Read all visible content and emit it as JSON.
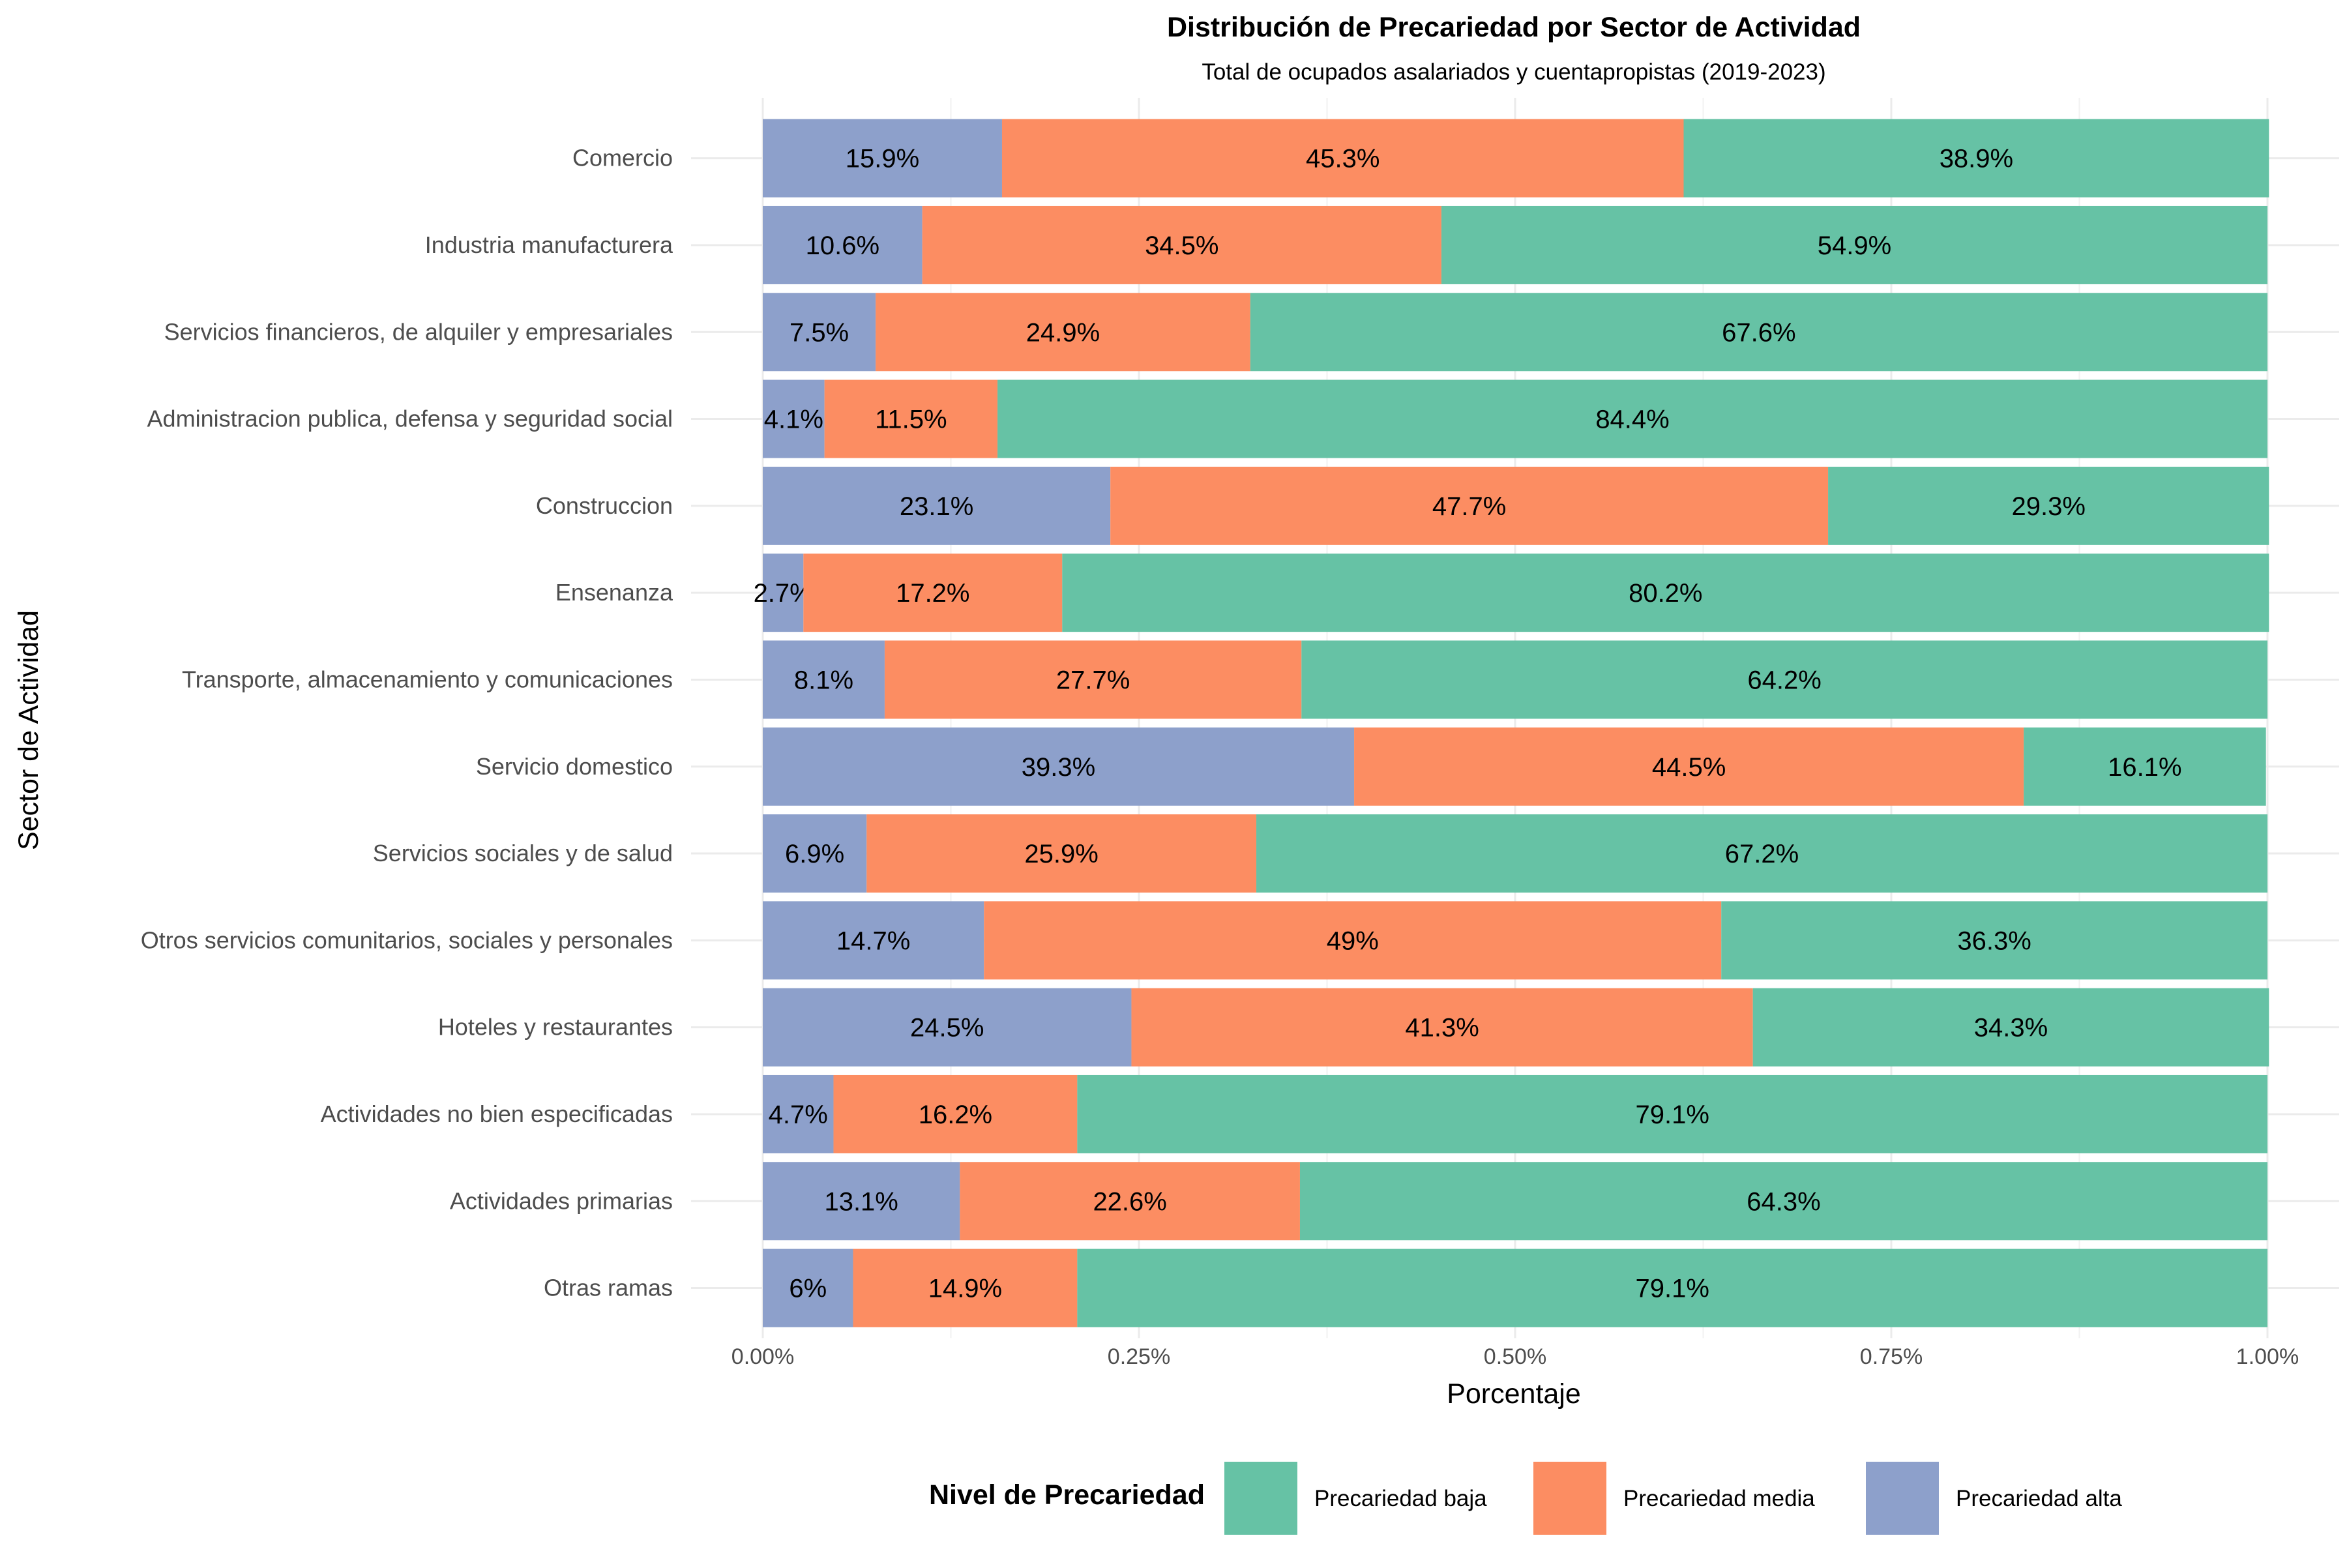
{
  "chart_data": {
    "type": "bar",
    "orientation": "horizontal",
    "stacked": true,
    "title": "Distribución de Precariedad por Sector de Actividad",
    "subtitle": "Total de ocupados asalariados y cuentapropistas (2019-2023)",
    "xlabel": "Porcentaje",
    "ylabel": "Sector de Actividad",
    "xlim": [
      0,
      1
    ],
    "x_ticks": [
      "0.00%",
      "0.25%",
      "0.50%",
      "0.75%",
      "1.00%"
    ],
    "grid": true,
    "legend_title": "Nivel de Precariedad",
    "legend_position": "bottom",
    "categories": [
      "Comercio",
      "Industria manufacturera",
      "Servicios financieros, de alquiler y empresariales",
      "Administracion publica, defensa y seguridad social",
      "Construccion",
      "Ensenanza",
      "Transporte, almacenamiento y comunicaciones",
      "Servicio domestico",
      "Servicios sociales y de salud",
      "Otros servicios comunitarios, sociales y personales",
      "Hoteles y restaurantes",
      "Actividades no bien especificadas",
      "Actividades primarias",
      "Otras ramas"
    ],
    "series": [
      {
        "name": "Precariedad alta",
        "color": "#8DA0CB",
        "values": [
          0.159,
          0.106,
          0.075,
          0.041,
          0.231,
          0.027,
          0.081,
          0.393,
          0.069,
          0.147,
          0.245,
          0.047,
          0.131,
          0.06
        ],
        "labels": [
          "15.9%",
          "10.6%",
          "7.5%",
          "4.1%",
          "23.1%",
          "2.7%",
          "8.1%",
          "39.3%",
          "6.9%",
          "14.7%",
          "24.5%",
          "4.7%",
          "13.1%",
          "6%"
        ]
      },
      {
        "name": "Precariedad media",
        "color": "#FC8D62",
        "values": [
          0.453,
          0.345,
          0.249,
          0.115,
          0.477,
          0.172,
          0.277,
          0.445,
          0.259,
          0.49,
          0.413,
          0.162,
          0.226,
          0.149
        ],
        "labels": [
          "45.3%",
          "34.5%",
          "24.9%",
          "11.5%",
          "47.7%",
          "17.2%",
          "27.7%",
          "44.5%",
          "25.9%",
          "49%",
          "41.3%",
          "16.2%",
          "22.6%",
          "14.9%"
        ]
      },
      {
        "name": "Precariedad baja",
        "color": "#66C2A5",
        "values": [
          0.389,
          0.549,
          0.676,
          0.844,
          0.293,
          0.802,
          0.642,
          0.161,
          0.672,
          0.363,
          0.343,
          0.791,
          0.643,
          0.791
        ],
        "labels": [
          "38.9%",
          "54.9%",
          "67.6%",
          "84.4%",
          "29.3%",
          "80.2%",
          "64.2%",
          "16.1%",
          "67.2%",
          "36.3%",
          "34.3%",
          "79.1%",
          "64.3%",
          "79.1%"
        ]
      }
    ],
    "legend_order": [
      "Precariedad baja",
      "Precariedad media",
      "Precariedad alta"
    ]
  }
}
